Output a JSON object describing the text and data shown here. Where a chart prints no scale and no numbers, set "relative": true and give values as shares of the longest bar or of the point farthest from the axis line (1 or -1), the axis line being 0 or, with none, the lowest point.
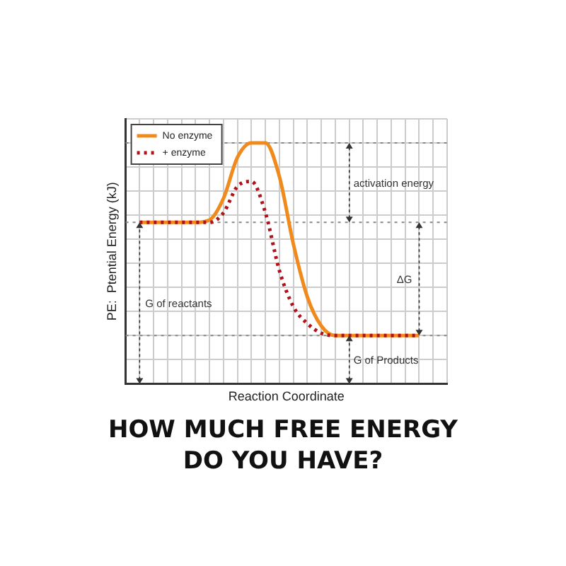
{
  "chart_data": {
    "type": "line",
    "title": "HOW MUCH FREE ENERGY DO YOU HAVE?",
    "xlabel": "Reaction Coordinate",
    "ylabel": "PE:  Ptential Energy (kJ)",
    "relative": true,
    "grid": true,
    "legend": "top left",
    "marker": "none",
    "categories": [
      null,
      null,
      null,
      null,
      null,
      null,
      null,
      null,
      null,
      null,
      null,
      null,
      null,
      null,
      null,
      null,
      null,
      null,
      null,
      null,
      null,
      null,
      null,
      null
    ],
    "series": [
      {
        "name": "No enzyme",
        "color": "#f08a1c",
        "line_style": "solid",
        "values": [
          null,
          0.67,
          0.67,
          0.67,
          0.67,
          0.67,
          0.68,
          0.77,
          0.94,
          1,
          1,
          0.86,
          0.58,
          0.36,
          0.24,
          0.2,
          0.2,
          0.2,
          0.2,
          0.2,
          0.2,
          0.2,
          null,
          null
        ]
      },
      {
        "name": "+ enzyme",
        "color": "#b0121b",
        "line_style": "dotted",
        "values": [
          null,
          0.67,
          0.67,
          0.67,
          0.67,
          0.67,
          0.67,
          0.71,
          0.82,
          0.84,
          0.71,
          0.47,
          0.32,
          0.25,
          0.21,
          0.2,
          0.2,
          0.2,
          0.2,
          0.2,
          0.2,
          0.2,
          null,
          null
        ]
      }
    ],
    "ref_lines": [
      {
        "axis": "y",
        "value": 1,
        "line_style": "dotted",
        "color": "#888888"
      },
      {
        "axis": "y",
        "value": 0.67,
        "line_style": "dotted",
        "color": "#888888"
      },
      {
        "axis": "y",
        "value": 0.2,
        "line_style": "dotted",
        "color": "#888888"
      }
    ],
    "annotations": [
      "activation energy",
      "ΔG",
      "G of reactants",
      "G of Products"
    ]
  }
}
